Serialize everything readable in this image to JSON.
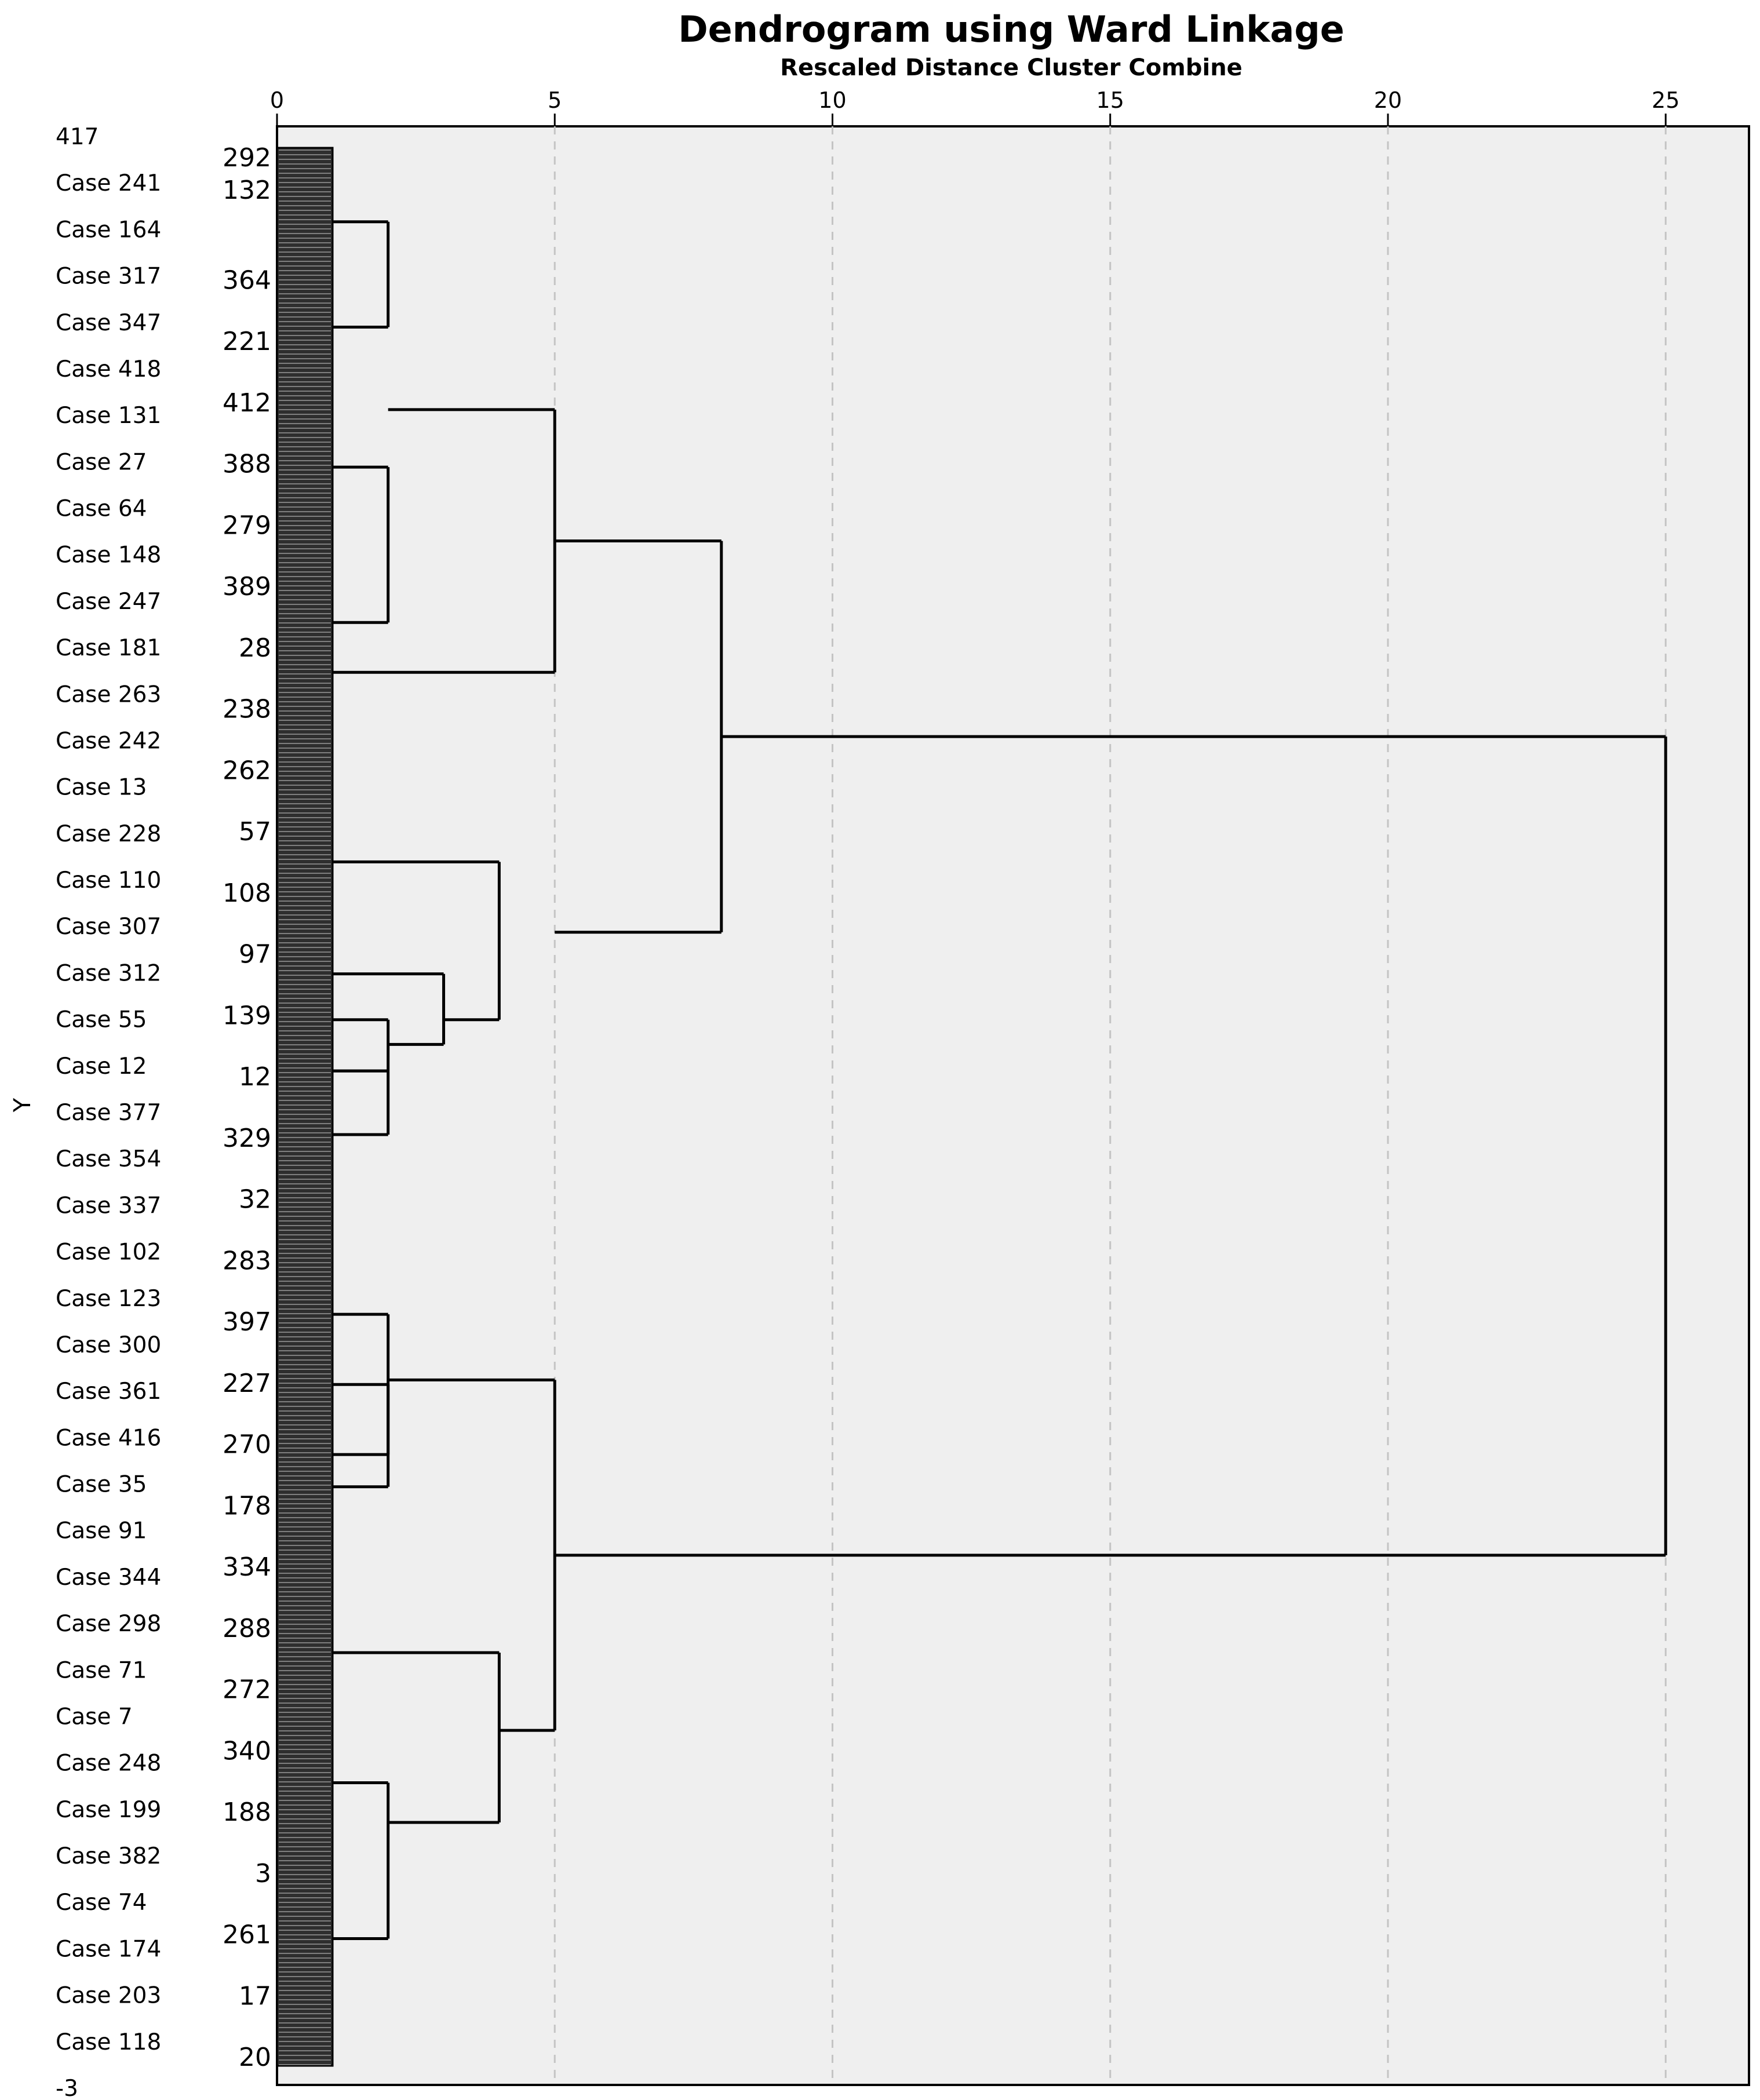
{
  "chart_data": {
    "type": "dendrogram",
    "title": "Dendrogram using Ward Linkage",
    "subtitle": "Rescaled Distance Cluster Combine",
    "ylabel": "Y",
    "x_ticks": [
      0,
      5,
      10,
      15,
      20,
      25
    ],
    "xlim": [
      0,
      26.5
    ],
    "grid": "vertical dashed at ticks",
    "case_labels": [
      "417",
      "Case 241",
      "Case 164",
      "Case 317",
      "Case 347",
      "Case 418",
      "Case 131",
      "Case 27",
      "Case 64",
      "Case 148",
      "Case 247",
      "Case 181",
      "Case 263",
      "Case 242",
      "Case 13",
      "Case 228",
      "Case 110",
      "Case 307",
      "Case 312",
      "Case 55",
      "Case 12",
      "Case 377",
      "Case 354",
      "Case 337",
      "Case 102",
      "Case 123",
      "Case 300",
      "Case 361",
      "Case 416",
      "Case 35",
      "Case 91",
      "Case 344",
      "Case 298",
      "Case 71",
      "Case 7",
      "Case 248",
      "Case 199",
      "Case 382",
      "Case 74",
      "Case 174",
      "Case 203",
      "Case 118",
      "-3"
    ],
    "number_labels": [
      "292",
      "132",
      "364",
      "221",
      "412",
      "388",
      "279",
      "389",
      "28",
      "238",
      "262",
      "57",
      "108",
      "97",
      "139",
      "12",
      "329",
      "32",
      "283",
      "397",
      "227",
      "270",
      "178",
      "334",
      "288",
      "272",
      "340",
      "188",
      "3",
      "261",
      "17",
      "20"
    ],
    "merges": [
      {
        "height": 2,
        "branches": [
          {
            "pos": 0.0386,
            "from": 1
          },
          {
            "pos": 0.0935,
            "from": 1
          }
        ],
        "out": 0.0661
      },
      {
        "height": 2,
        "branches": [
          {
            "pos": 0.1665,
            "from": 1
          },
          {
            "pos": 0.2475,
            "from": 1
          }
        ],
        "out": 0.207
      },
      {
        "height": 5,
        "branches": [
          {
            "pos": 0.1365,
            "from": 2
          },
          {
            "pos": 0.2735,
            "from": 1
          }
        ],
        "out": 0.205
      },
      {
        "height": 8,
        "branches": [
          {
            "pos": 0.205,
            "from": 5
          },
          {
            "pos": 0.409,
            "from": 5
          }
        ],
        "out": 0.307
      },
      {
        "height": 3,
        "branches": [
          {
            "pos": 0.4307,
            "from": 1
          },
          {
            "pos": 0.4675,
            "from": 2
          }
        ],
        "out": 0.4491
      },
      {
        "height": 2,
        "branches": [
          {
            "pos": 0.4546,
            "from": 1
          },
          {
            "pos": 0.4813,
            "from": 1
          }
        ],
        "out": 0.4675
      },
      {
        "height": 2,
        "branches": [
          {
            "pos": 0.4813,
            "from": 1
          },
          {
            "pos": 0.5145,
            "from": 1
          }
        ],
        "out": 0.4979
      },
      {
        "height": 4,
        "branches": [
          {
            "pos": 0.3723,
            "from": 1
          },
          {
            "pos": 0.4546,
            "from": 3
          }
        ],
        "out": 0.4134
      },
      {
        "height": 2,
        "branches": [
          {
            "pos": 0.6082,
            "from": 1
          },
          {
            "pos": 0.6813,
            "from": 1
          }
        ],
        "out": 0.6448
      },
      {
        "height": 2,
        "branches": [
          {
            "pos": 0.6448,
            "from": 1
          },
          {
            "pos": 0.6981,
            "from": 1
          }
        ],
        "out": 0.6714
      },
      {
        "height": 5,
        "branches": [
          {
            "pos": 0.6424,
            "from": 2
          },
          {
            "pos": 0.8251,
            "from": 4
          }
        ],
        "out": 0.7338
      },
      {
        "height": 4,
        "branches": [
          {
            "pos": 0.7846,
            "from": 1
          },
          {
            "pos": 0.8731,
            "from": 2
          }
        ],
        "out": 0.8289
      },
      {
        "height": 2,
        "branches": [
          {
            "pos": 0.8524,
            "from": 1
          },
          {
            "pos": 0.9337,
            "from": 1
          }
        ],
        "out": 0.8931
      },
      {
        "height": 25,
        "branches": [
          {
            "pos": 0.307,
            "from": 8
          },
          {
            "pos": 0.7338,
            "from": 5
          }
        ],
        "out": 0.52
      }
    ]
  }
}
